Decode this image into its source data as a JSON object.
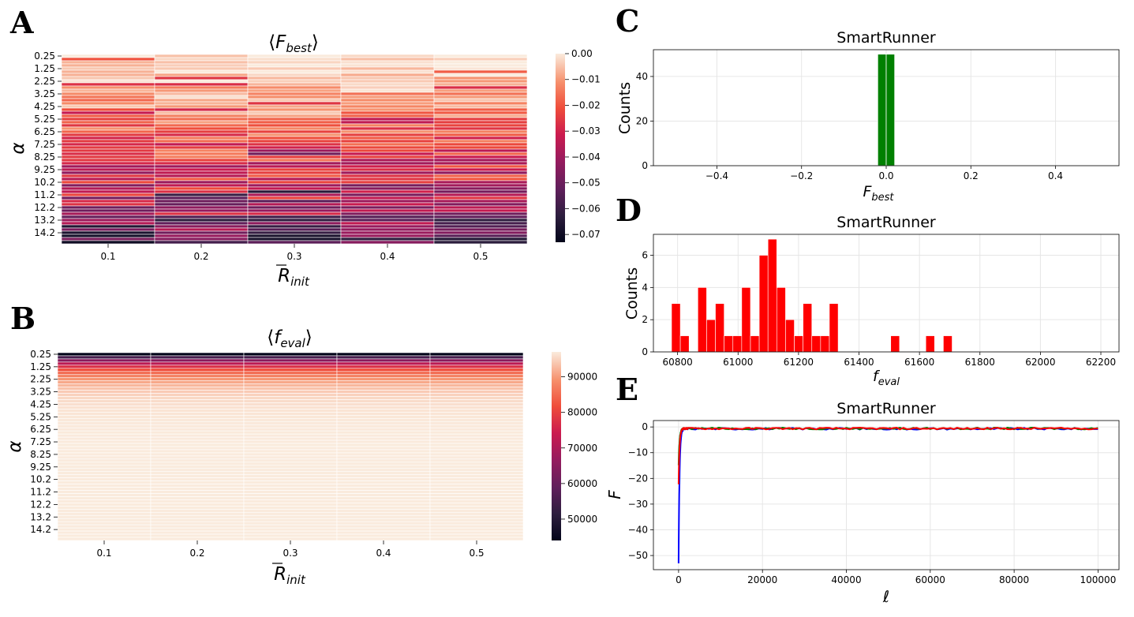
{
  "panels": {
    "A": {
      "label": "A",
      "title": "⟨F_best⟩",
      "xlabel": "R̄_init",
      "ylabel": "α",
      "xticks": [
        "0.1",
        "0.2",
        "0.3",
        "0.4",
        "0.5"
      ],
      "yticks": [
        "0.25",
        "1.25",
        "2.25",
        "3.25",
        "4.25",
        "5.25",
        "6.25",
        "7.25",
        "8.25",
        "9.25",
        "10.2",
        "11.2",
        "12.2",
        "13.2",
        "14.2"
      ],
      "colorbar_ticks": [
        "0.00",
        "−0.01",
        "−0.02",
        "−0.03",
        "−0.04",
        "−0.05",
        "−0.06",
        "−0.07"
      ]
    },
    "B": {
      "label": "B",
      "title": "⟨f_eval⟩",
      "xlabel": "R̄_init",
      "ylabel": "α",
      "xticks": [
        "0.1",
        "0.2",
        "0.3",
        "0.4",
        "0.5"
      ],
      "yticks": [
        "0.25",
        "1.25",
        "2.25",
        "3.25",
        "4.25",
        "5.25",
        "6.25",
        "7.25",
        "8.25",
        "9.25",
        "10.2",
        "11.2",
        "12.2",
        "13.2",
        "14.2"
      ],
      "colorbar_ticks": [
        "90000",
        "80000",
        "70000",
        "60000",
        "50000"
      ]
    },
    "C": {
      "label": "C"
    },
    "D": {
      "label": "D"
    },
    "E": {
      "label": "E"
    }
  },
  "colors": {
    "green": "#008000",
    "red": "#ff0000",
    "blue": "#0000ff",
    "grid": "#e6e6e6"
  },
  "chart_data": [
    {
      "id": "A",
      "type": "heatmap",
      "title": "⟨F_best⟩",
      "xlabel": "R̄_init",
      "ylabel": "α",
      "x": [
        0.1,
        0.2,
        0.3,
        0.4,
        0.5
      ],
      "y_tick_labels": [
        "0.25",
        "1.25",
        "2.25",
        "3.25",
        "4.25",
        "5.25",
        "6.25",
        "7.25",
        "8.25",
        "9.25",
        "10.2",
        "11.2",
        "12.2",
        "13.2",
        "14.2"
      ],
      "rows": 60,
      "colorbar": {
        "min": -0.073,
        "max": 0.0,
        "ticks": [
          0.0,
          -0.01,
          -0.02,
          -0.03,
          -0.04,
          -0.05,
          -0.06,
          -0.07
        ]
      },
      "trend": "values near 0 for small alpha, decreasing toward about -0.07 for large alpha"
    },
    {
      "id": "B",
      "type": "heatmap",
      "title": "⟨f_eval⟩",
      "xlabel": "R̄_init",
      "ylabel": "α",
      "x": [
        0.1,
        0.2,
        0.3,
        0.4,
        0.5
      ],
      "y_tick_labels": [
        "0.25",
        "1.25",
        "2.25",
        "3.25",
        "4.25",
        "5.25",
        "6.25",
        "7.25",
        "8.25",
        "9.25",
        "10.2",
        "11.2",
        "12.2",
        "13.2",
        "14.2"
      ],
      "rows": 60,
      "colorbar": {
        "min": 44000,
        "max": 97000,
        "ticks": [
          90000,
          80000,
          70000,
          60000,
          50000
        ]
      },
      "trend": "about 44000 at alpha 0.25 rising quickly to about 97000 for larger alpha"
    },
    {
      "id": "C",
      "type": "bar",
      "title": "SmartRunner",
      "xlabel": "F_best",
      "ylabel": "Counts",
      "xlim": [
        -0.55,
        0.55
      ],
      "ylim": [
        0,
        52
      ],
      "xticks": [
        "−0.4",
        "−0.2",
        "0.0",
        "0.2",
        "0.4"
      ],
      "yticks": [
        "0",
        "20",
        "40"
      ],
      "bins": [
        {
          "left": -0.02,
          "right": 0.0,
          "count": 50
        },
        {
          "left": 0.0,
          "right": 0.02,
          "count": 50
        }
      ],
      "color": "green"
    },
    {
      "id": "D",
      "type": "bar",
      "title": "SmartRunner",
      "xlabel": "f_eval",
      "ylabel": "Counts",
      "xlim": [
        60720,
        62260
      ],
      "ylim": [
        0,
        7.3
      ],
      "xticks": [
        "60800",
        "61000",
        "61200",
        "61400",
        "61600",
        "61800",
        "62000",
        "62200"
      ],
      "yticks": [
        "0",
        "2",
        "4",
        "6"
      ],
      "bin_start": 60780,
      "bin_width": 29,
      "counts": [
        3,
        1,
        0,
        4,
        2,
        3,
        1,
        1,
        4,
        1,
        6,
        7,
        4,
        2,
        1,
        3,
        1,
        1,
        3,
        0,
        0,
        0,
        0,
        0,
        0,
        1,
        0,
        0,
        0,
        1,
        0,
        1
      ],
      "color": "red"
    },
    {
      "id": "E",
      "type": "line",
      "title": "SmartRunner",
      "xlabel": "ℓ",
      "ylabel": "F",
      "xlim": [
        -6000,
        105000
      ],
      "ylim": [
        -55.5,
        2.5
      ],
      "xticks": [
        "0",
        "20000",
        "40000",
        "60000",
        "80000",
        "100000"
      ],
      "yticks": [
        "0",
        "−10",
        "−20",
        "−30",
        "−40",
        "−50"
      ],
      "series": [
        {
          "name": "run-blue",
          "color": "blue",
          "start": -53,
          "plateau": -0.7
        },
        {
          "name": "run-green",
          "color": "green",
          "start": -15,
          "plateau": -0.6
        },
        {
          "name": "run-red",
          "color": "red",
          "start": -22,
          "plateau": -0.6
        }
      ],
      "x_end": 100000
    }
  ]
}
